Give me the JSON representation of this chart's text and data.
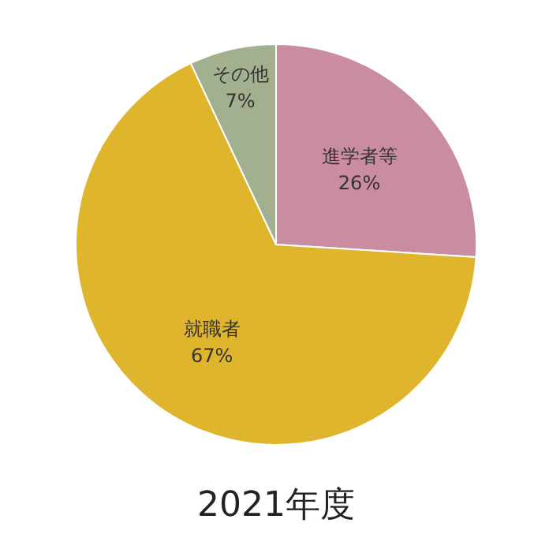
{
  "chart_data": {
    "type": "pie",
    "title": "2021年度",
    "categories": [
      "進学者等",
      "就職者",
      "その他"
    ],
    "values": [
      26,
      67,
      7
    ],
    "value_labels": [
      "26%",
      "67%",
      "7%"
    ],
    "colors": [
      "#c98ca0",
      "#e0b52e",
      "#a3b08f"
    ],
    "legend": false
  }
}
